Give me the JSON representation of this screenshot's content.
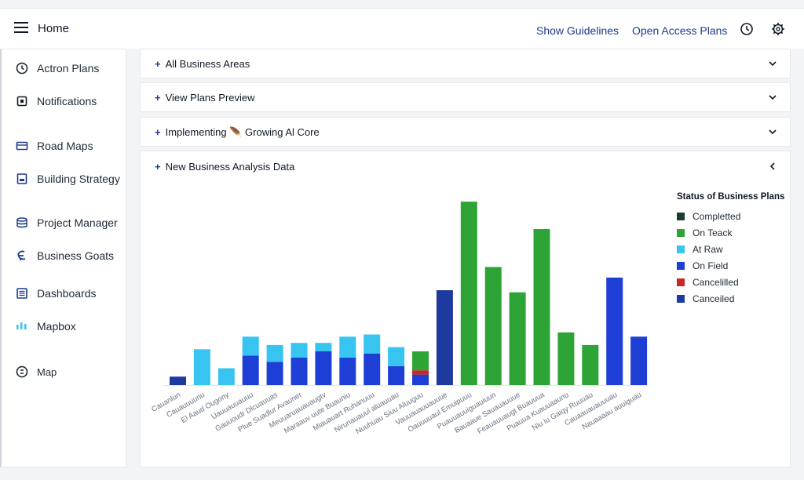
{
  "header": {
    "home_label": "Home",
    "links": [
      "Show Guidelines",
      "Open Access Plans"
    ],
    "icons": [
      "clock-icon",
      "gear-icon"
    ]
  },
  "sidebar": {
    "items": [
      {
        "label": "Actron Plans",
        "icon": "clock-icon"
      },
      {
        "label": "Notifications",
        "icon": "notification-icon"
      },
      {
        "label": "Road Maps",
        "icon": "map-card-icon"
      },
      {
        "label": "Building Strategy",
        "icon": "building-icon"
      },
      {
        "label": "Project Manager",
        "icon": "database-icon"
      },
      {
        "label": "Business Goats",
        "icon": "goal-icon"
      },
      {
        "label": "Dashboards",
        "icon": "list-icon"
      },
      {
        "label": "Mapbox",
        "icon": "bars-icon"
      },
      {
        "label": "Map",
        "icon": "map-pin-circle-icon"
      }
    ]
  },
  "accordions": [
    {
      "title": "All Business Areas",
      "expanded": false
    },
    {
      "title": "View Plans Preview",
      "expanded": false
    },
    {
      "title": "Implementing 🪶 Growing Al Core",
      "expanded": false
    },
    {
      "title": "New Business Analysis Data",
      "expanded": true
    }
  ],
  "colors": {
    "completed": "#1f3d2b",
    "on_teack": "#2ea336",
    "at_raw": "#38c4f0",
    "on_field": "#1e3fd6",
    "cancelled_red": "#c62828",
    "canceiled": "#1f3a9e",
    "link": "#1e3a8a"
  },
  "chart_data": {
    "type": "bar",
    "stacked": true,
    "legend_title": "Status of Business Plans",
    "legend_position": "right",
    "legend": [
      "Completted",
      "On Teack",
      "At Raw",
      "On Field",
      "Cancelilled",
      "Canceiled"
    ],
    "categories": [
      "Cauanlun",
      "Cauauuuunu",
      "El Aaud Ougony",
      "Uauuauuauuu",
      "Gauuoudr Dlcuauuas",
      "Plue Suadlur Avauner",
      "Meuuaruauauaugtv",
      "Maraauv uute Buauniu",
      "Miauauart Ruhanuuu",
      "Nirunauauul aluauuau",
      "Nuuhuau Siuu Aluuguu",
      "Vauuauauuauuue",
      "Oauuuuaul Emuipuuu",
      "Puauuauuiguauiuun",
      "Bauaaue Sauauauuue",
      "Feauauuaugt Buauuua",
      "Puauua Kuauuaaunu",
      "Niu iu Gaiqy Ruuuau",
      "Cauaauauauuuau",
      "Nauaaaau auuiguau"
    ],
    "series": [
      {
        "name": "Canceiled",
        "values": [
          4,
          0,
          0,
          0,
          0,
          0,
          0,
          0,
          0,
          0,
          0,
          45,
          0,
          0,
          0,
          0,
          0,
          0,
          0,
          0
        ]
      },
      {
        "name": "On Field",
        "values": [
          0,
          0,
          0,
          14,
          11,
          13,
          16,
          13,
          15,
          9,
          5,
          0,
          0,
          0,
          0,
          0,
          0,
          0,
          51,
          23
        ]
      },
      {
        "name": "Cancelilled",
        "values": [
          0,
          0,
          0,
          0,
          0,
          0,
          0,
          0,
          0,
          0,
          2,
          0,
          0,
          0,
          0,
          0,
          0,
          0,
          0,
          0
        ]
      },
      {
        "name": "At Raw",
        "values": [
          0,
          17,
          8,
          9,
          8,
          7,
          4,
          10,
          9,
          9,
          0,
          0,
          0,
          0,
          0,
          0,
          0,
          0,
          0,
          0
        ]
      },
      {
        "name": "On Teack",
        "values": [
          0,
          0,
          0,
          0,
          0,
          0,
          0,
          0,
          0,
          0,
          9,
          0,
          87,
          56,
          44,
          74,
          25,
          19,
          0,
          0
        ]
      }
    ],
    "ylim": [
      0,
      90
    ],
    "grid": false
  }
}
